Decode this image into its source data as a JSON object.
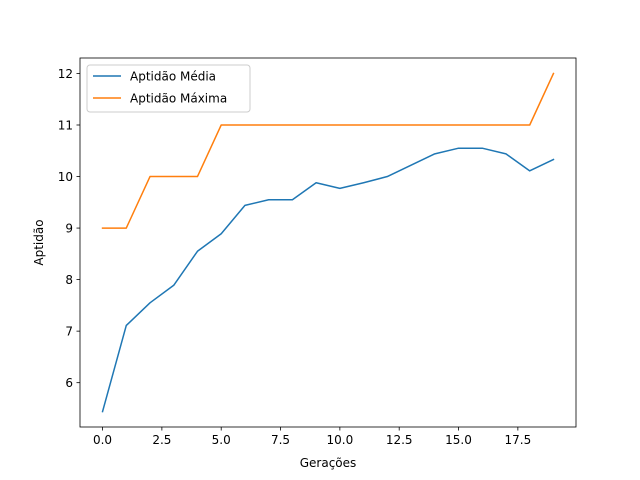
{
  "chart_data": {
    "type": "line",
    "title": "",
    "xlabel": "Gerações",
    "ylabel": "Aptidão",
    "xlim": [
      -0.95,
      19.95
    ],
    "ylim": [
      5.14,
      12.3
    ],
    "x_ticks": [
      0,
      2.5,
      5,
      7.5,
      10,
      12.5,
      15,
      17.5
    ],
    "x_tick_labels": [
      "0.0",
      "2.5",
      "5.0",
      "7.5",
      "10.0",
      "12.5",
      "15.0",
      "17.5"
    ],
    "y_ticks": [
      6,
      7,
      8,
      9,
      10,
      11,
      12
    ],
    "y_tick_labels": [
      "6",
      "7",
      "8",
      "9",
      "10",
      "11",
      "12"
    ],
    "grid": false,
    "legend_position": "upper-left",
    "x": [
      0,
      1,
      2,
      3,
      4,
      5,
      6,
      7,
      8,
      9,
      10,
      11,
      12,
      13,
      14,
      15,
      16,
      17,
      18,
      19
    ],
    "series": [
      {
        "name": "Aptidão Média",
        "color": "#1f77b4",
        "values": [
          5.44,
          7.11,
          7.55,
          7.89,
          8.55,
          8.89,
          9.44,
          9.55,
          9.55,
          9.88,
          9.77,
          9.88,
          10.0,
          10.22,
          10.44,
          10.55,
          10.55,
          10.44,
          10.11,
          10.33
        ]
      },
      {
        "name": "Aptidão Máxima",
        "color": "#ff7f0e",
        "values": [
          9,
          9,
          10,
          10,
          10,
          11,
          11,
          11,
          11,
          11,
          11,
          11,
          11,
          11,
          11,
          11,
          11,
          11,
          11,
          12
        ]
      }
    ]
  }
}
